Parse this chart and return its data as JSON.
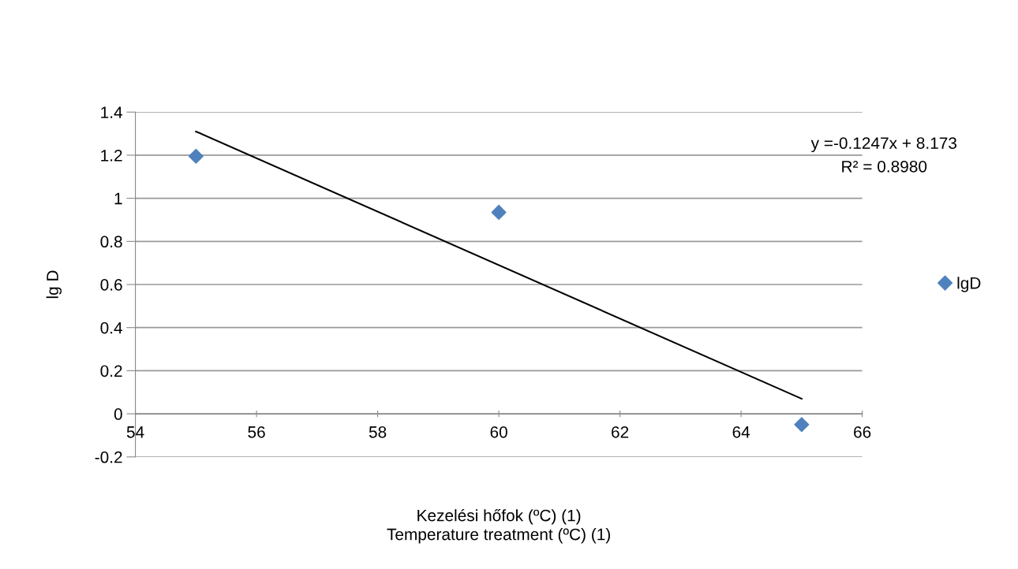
{
  "chart_data": {
    "type": "scatter",
    "xlabel": "Kezelési hőfok (ºC) (1)\nTemperature treatment (ºC) (1)",
    "ylabel": "lg D",
    "series": [
      {
        "name": "lgD",
        "color": "#4f81bd",
        "marker": "diamond",
        "x": [
          55,
          60,
          65
        ],
        "values": [
          1.195,
          0.935,
          -0.05
        ]
      },
      {
        "type": "line",
        "color": "#000000",
        "marker": "none",
        "x": [
          55,
          65
        ],
        "values": [
          1.31,
          0.07
        ]
      }
    ],
    "annotations": [
      "y =-0.1247x + 8.173",
      "R² = 0.8980"
    ],
    "xlim": [
      54,
      66
    ],
    "xticks": [
      54,
      56,
      58,
      60,
      62,
      64,
      66
    ],
    "ylim": [
      -0.2,
      1.4
    ],
    "yticks": [
      -0.2,
      0,
      0.2,
      0.4,
      0.6,
      0.8,
      1,
      1.2,
      1.4
    ],
    "grid": "y",
    "legend": "right"
  }
}
